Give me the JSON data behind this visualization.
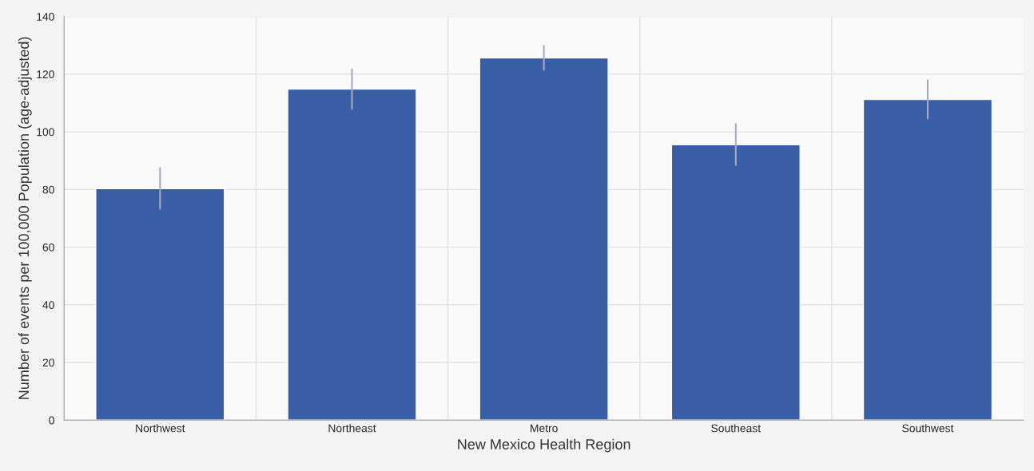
{
  "chart_data": {
    "type": "bar",
    "xlabel": "New Mexico Health Region",
    "ylabel": "Number of events per 100,000 Population (age-adjusted)",
    "categories": [
      "Northwest",
      "Northeast",
      "Metro",
      "Southeast",
      "Southwest"
    ],
    "values": [
      80.3,
      114.8,
      125.6,
      95.5,
      111.2
    ],
    "errors": [
      [
        73.3,
        87.4
      ],
      [
        107.9,
        121.7
      ],
      [
        121.5,
        129.8
      ],
      [
        88.5,
        102.7
      ],
      [
        104.6,
        117.9
      ]
    ],
    "color": "#3a5ea6",
    "ylim": [
      0,
      140
    ],
    "yticks": [
      0,
      20,
      40,
      60,
      80,
      100,
      120,
      140
    ],
    "grid": true
  }
}
